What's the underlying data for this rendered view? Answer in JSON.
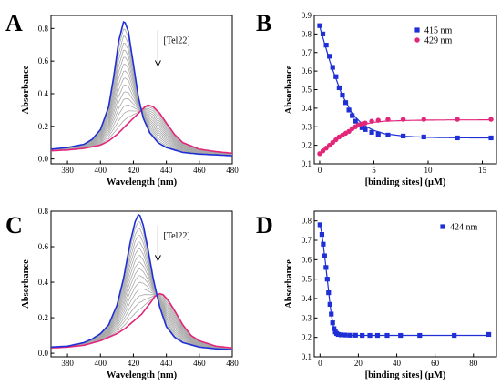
{
  "colors": {
    "blue": "#1f2fd6",
    "pink": "#e2267a",
    "gray": "#a8a8a8",
    "axis": "#000000"
  },
  "chart_data": [
    {
      "panel": "A",
      "type": "line",
      "xlabel": "Wavelength (nm)",
      "ylabel": "Absorbance",
      "xlim": [
        370,
        480
      ],
      "ylim": [
        -0.03,
        0.88
      ],
      "xticks": [
        380,
        400,
        420,
        440,
        460,
        480
      ],
      "yticks": [
        0.0,
        0.2,
        0.4,
        0.6,
        0.8
      ],
      "annotation": "[Tel22]",
      "series": [
        {
          "role": "initial",
          "color": "#1f2fd6",
          "x": [
            370,
            380,
            390,
            395,
            400,
            405,
            408,
            411,
            414,
            415,
            417,
            420,
            423,
            426,
            430,
            435,
            440,
            450,
            460,
            470,
            480
          ],
          "y": [
            0.06,
            0.07,
            0.09,
            0.12,
            0.18,
            0.32,
            0.5,
            0.72,
            0.84,
            0.835,
            0.78,
            0.58,
            0.38,
            0.25,
            0.16,
            0.1,
            0.07,
            0.04,
            0.03,
            0.025,
            0.02
          ]
        },
        {
          "role": "final",
          "color": "#e2267a",
          "x": [
            370,
            380,
            390,
            400,
            405,
            410,
            415,
            420,
            424,
            427,
            429,
            432,
            436,
            440,
            445,
            450,
            460,
            470,
            480
          ],
          "y": [
            0.05,
            0.055,
            0.065,
            0.085,
            0.11,
            0.15,
            0.2,
            0.25,
            0.29,
            0.32,
            0.33,
            0.32,
            0.28,
            0.22,
            0.15,
            0.1,
            0.06,
            0.045,
            0.035
          ]
        }
      ]
    },
    {
      "panel": "B",
      "type": "scatter",
      "xlabel": "[binding sites] (μM)",
      "ylabel": "Absorbance",
      "xlim": [
        -0.5,
        16.3
      ],
      "ylim": [
        0.1,
        0.9
      ],
      "xticks": [
        0,
        5,
        10,
        15
      ],
      "yticks": [
        0.1,
        0.2,
        0.3,
        0.4,
        0.5,
        0.6,
        0.7,
        0.8,
        0.9
      ],
      "legend": "top-right",
      "series": [
        {
          "name": "415 nm",
          "marker": "square",
          "color": "#1f2fd6",
          "x": [
            0.0,
            0.3,
            0.6,
            0.9,
            1.2,
            1.5,
            1.8,
            2.1,
            2.4,
            2.7,
            3.0,
            3.3,
            3.6,
            3.9,
            4.2,
            4.8,
            5.4,
            6.3,
            7.7,
            9.6,
            12.7,
            15.8
          ],
          "y": [
            0.845,
            0.8,
            0.74,
            0.68,
            0.62,
            0.57,
            0.51,
            0.47,
            0.43,
            0.39,
            0.36,
            0.33,
            0.31,
            0.295,
            0.285,
            0.27,
            0.26,
            0.255,
            0.25,
            0.245,
            0.24,
            0.24
          ],
          "fit": {
            "x": [
              0,
              1,
              2,
              3,
              4,
              5,
              6,
              8,
              10,
              12,
              14,
              16
            ],
            "y": [
              0.84,
              0.64,
              0.48,
              0.37,
              0.31,
              0.28,
              0.262,
              0.248,
              0.243,
              0.241,
              0.24,
              0.24
            ]
          }
        },
        {
          "name": "429 nm",
          "marker": "circle",
          "color": "#e2267a",
          "x": [
            0.0,
            0.3,
            0.6,
            0.9,
            1.2,
            1.5,
            1.8,
            2.1,
            2.4,
            2.7,
            3.0,
            3.3,
            3.6,
            3.9,
            4.2,
            4.8,
            5.4,
            6.3,
            7.7,
            9.6,
            12.7,
            15.8
          ],
          "y": [
            0.155,
            0.17,
            0.185,
            0.2,
            0.215,
            0.23,
            0.245,
            0.255,
            0.265,
            0.275,
            0.29,
            0.3,
            0.31,
            0.315,
            0.32,
            0.33,
            0.335,
            0.34,
            0.34,
            0.34,
            0.34,
            0.34
          ],
          "fit": {
            "x": [
              0,
              1,
              2,
              3,
              4,
              5,
              6,
              8,
              10,
              12,
              14,
              16
            ],
            "y": [
              0.155,
              0.205,
              0.255,
              0.29,
              0.312,
              0.324,
              0.33,
              0.334,
              0.336,
              0.337,
              0.337,
              0.338
            ]
          }
        }
      ]
    },
    {
      "panel": "C",
      "type": "line",
      "xlabel": "Wavelength (nm)",
      "ylabel": "Absorbance",
      "xlim": [
        370,
        480
      ],
      "ylim": [
        -0.02,
        0.8
      ],
      "xticks": [
        380,
        400,
        420,
        440,
        460,
        480
      ],
      "yticks": [
        0.0,
        0.2,
        0.4,
        0.6,
        0.8
      ],
      "annotation": "[Tel22]",
      "series": [
        {
          "role": "initial",
          "color": "#1f2fd6",
          "x": [
            370,
            380,
            390,
            395,
            400,
            405,
            410,
            414,
            418,
            421,
            423,
            424,
            426,
            429,
            432,
            436,
            440,
            445,
            450,
            460,
            470,
            480
          ],
          "y": [
            0.035,
            0.04,
            0.06,
            0.08,
            0.11,
            0.16,
            0.27,
            0.42,
            0.62,
            0.74,
            0.78,
            0.775,
            0.72,
            0.58,
            0.42,
            0.26,
            0.15,
            0.09,
            0.06,
            0.035,
            0.025,
            0.02
          ]
        },
        {
          "role": "final",
          "color": "#e2267a",
          "x": [
            370,
            380,
            390,
            400,
            410,
            415,
            420,
            425,
            430,
            433,
            436,
            438,
            441,
            445,
            450,
            455,
            460,
            470,
            480
          ],
          "y": [
            0.03,
            0.035,
            0.045,
            0.07,
            0.11,
            0.14,
            0.18,
            0.22,
            0.28,
            0.32,
            0.335,
            0.33,
            0.3,
            0.24,
            0.16,
            0.1,
            0.07,
            0.04,
            0.03
          ]
        }
      ]
    },
    {
      "panel": "D",
      "type": "scatter",
      "xlabel": "[binding sites] (μM)",
      "ylabel": "Absorbance",
      "xlim": [
        -3,
        92
      ],
      "ylim": [
        0.1,
        0.85
      ],
      "xticks": [
        0,
        20,
        40,
        60,
        80
      ],
      "yticks": [
        0.1,
        0.2,
        0.3,
        0.4,
        0.5,
        0.6,
        0.7,
        0.8
      ],
      "legend": "top-right",
      "series": [
        {
          "name": "424 nm",
          "marker": "square",
          "color": "#1f2fd6",
          "x": [
            0,
            1,
            1.7,
            2.4,
            3.1,
            3.8,
            4.5,
            5.2,
            5.9,
            6.6,
            7.3,
            8.0,
            8.7,
            9.5,
            11,
            13,
            15.5,
            18.5,
            22,
            26,
            30,
            35,
            42,
            52,
            70,
            88
          ],
          "y": [
            0.78,
            0.73,
            0.68,
            0.62,
            0.56,
            0.5,
            0.43,
            0.37,
            0.32,
            0.275,
            0.245,
            0.228,
            0.22,
            0.215,
            0.213,
            0.212,
            0.211,
            0.211,
            0.21,
            0.21,
            0.21,
            0.21,
            0.21,
            0.21,
            0.21,
            0.215
          ],
          "fit": {
            "x": [
              0,
              1,
              2,
              3,
              4,
              5,
              6,
              7,
              8,
              9,
              10,
              12,
              15,
              20,
              40,
              60,
              88
            ],
            "y": [
              0.78,
              0.73,
              0.655,
              0.57,
              0.48,
              0.39,
              0.31,
              0.255,
              0.225,
              0.215,
              0.212,
              0.21,
              0.21,
              0.21,
              0.21,
              0.21,
              0.21
            ]
          }
        }
      ]
    }
  ]
}
